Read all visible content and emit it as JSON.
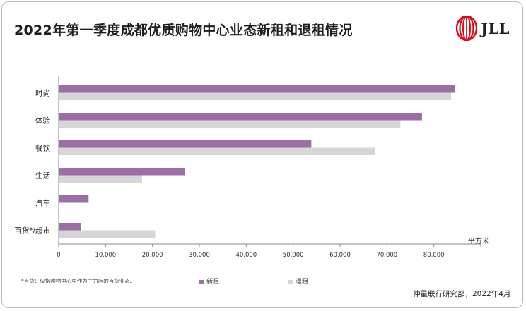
{
  "title": "2022年第一季度成都优质购物中心业态新租和退租情况",
  "brand": {
    "name": "JLL",
    "icon": "jll-logo-icon",
    "color": "#e30613"
  },
  "unit_label": "平方米",
  "footnote": "*百货：仅指购物中心里作为主力店的百货业态。",
  "source": "仲量联行研究部，2022年4月",
  "chart_data": {
    "type": "bar",
    "orientation": "horizontal",
    "title": "",
    "xlabel": "",
    "ylabel": "",
    "xlim": [
      0,
      90000
    ],
    "x_ticks": [
      0,
      10000,
      20000,
      30000,
      40000,
      50000,
      60000,
      70000,
      80000
    ],
    "x_tick_labels": [
      "0",
      "10,000",
      "20,000",
      "30,000",
      "40,000",
      "50,000",
      "60,000",
      "70,000",
      "80,000"
    ],
    "categories": [
      "时尚",
      "体验",
      "餐饮",
      "生活",
      "汽车",
      "百货*/超市"
    ],
    "series": [
      {
        "name": "新租",
        "color": "#9b6fa6",
        "values": [
          84500,
          77400,
          53800,
          26800,
          6300,
          4600
        ]
      },
      {
        "name": "退租",
        "color": "#d6d6d6",
        "values": [
          83600,
          72800,
          67300,
          17700,
          0,
          20500
        ]
      }
    ],
    "legend": "bottom",
    "grid": false
  }
}
